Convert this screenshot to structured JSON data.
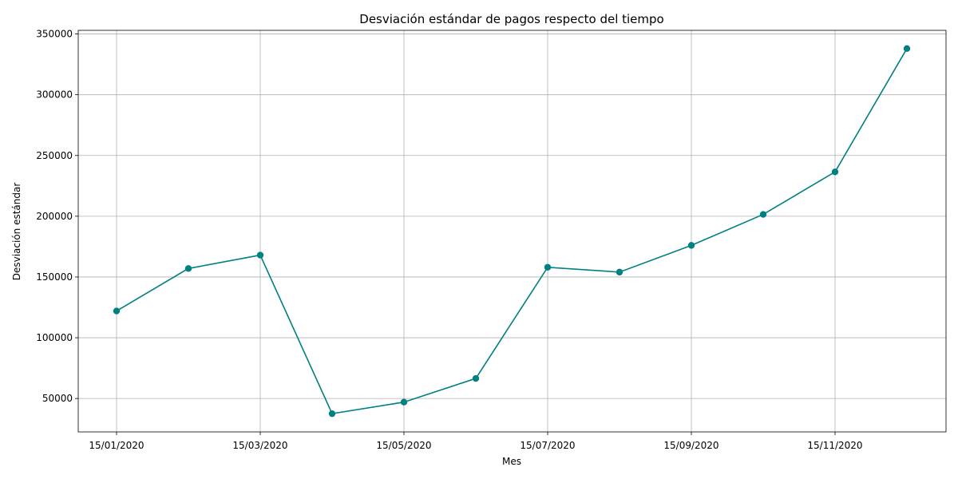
{
  "chart_data": {
    "type": "line",
    "title": "Desviación estándar de pagos respecto del tiempo",
    "xlabel": "Mes",
    "ylabel": "Desviación estándar",
    "x": [
      "15/01/2020",
      "15/02/2020",
      "15/03/2020",
      "15/04/2020",
      "15/05/2020",
      "15/06/2020",
      "15/07/2020",
      "15/08/2020",
      "15/09/2020",
      "15/10/2020",
      "15/11/2020",
      "15/12/2020"
    ],
    "x_ticks": [
      "15/01/2020",
      "15/03/2020",
      "15/05/2020",
      "15/07/2020",
      "15/09/2020",
      "15/11/2020"
    ],
    "series": [
      {
        "values": [
          122000,
          157000,
          168000,
          37500,
          47000,
          66500,
          158000,
          154000,
          176000,
          201500,
          236500,
          338000
        ],
        "color": "#008080",
        "marker": "circle"
      }
    ],
    "y_ticks": [
      50000,
      100000,
      150000,
      200000,
      250000,
      300000,
      350000
    ],
    "ylim": [
      22500,
      353000
    ],
    "grid": true
  }
}
